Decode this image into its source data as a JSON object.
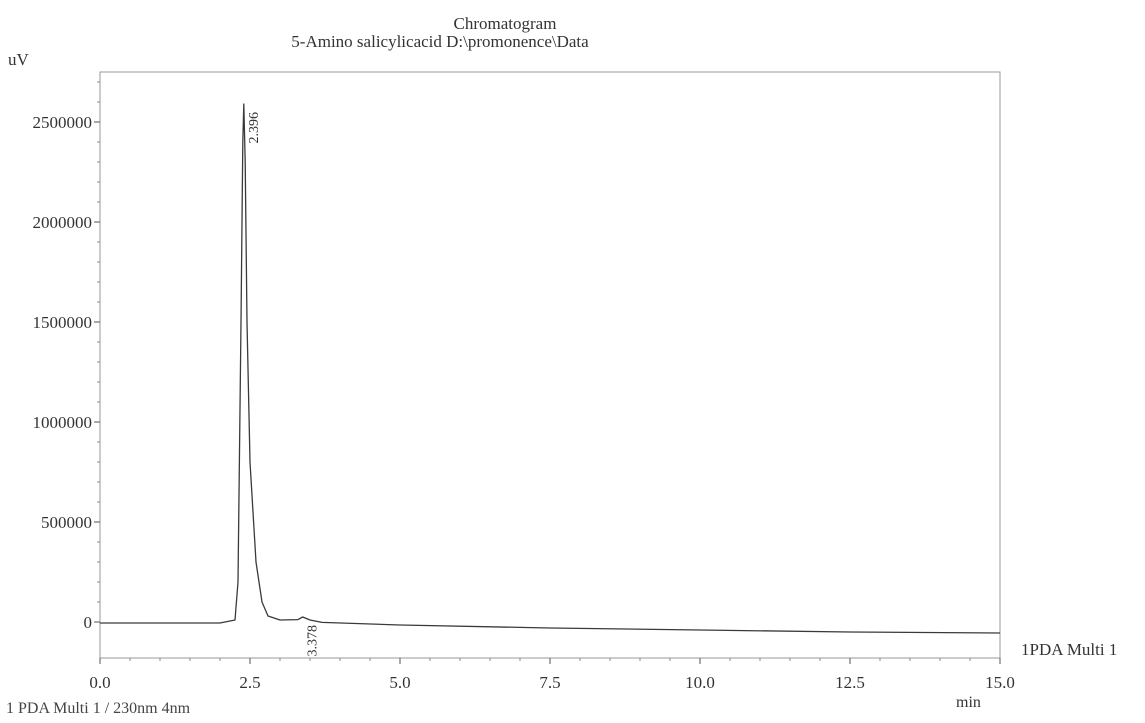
{
  "chart_data": {
    "type": "line",
    "title": "Chromatogram",
    "subtitle": "5-Amino salicylicacid D:\\promonence\\Data",
    "ylabel": "uV",
    "xlabel": "min",
    "xlim": [
      0.0,
      15.0
    ],
    "ylim": [
      -180000,
      2750000
    ],
    "x_ticks": [
      "0.0",
      "2.5",
      "5.0",
      "7.5",
      "10.0",
      "12.5",
      "15.0"
    ],
    "x_tick_values": [
      0.0,
      2.5,
      5.0,
      7.5,
      10.0,
      12.5,
      15.0
    ],
    "y_ticks": [
      "0",
      "500000",
      "1000000",
      "1500000",
      "2000000",
      "2500000"
    ],
    "y_tick_values": [
      0,
      500000,
      1000000,
      1500000,
      2000000,
      2500000
    ],
    "grid": false,
    "legend_right": "1PDA Multi 1",
    "legend_bottom": "1 PDA Multi 1 / 230nm 4nm",
    "series": [
      {
        "name": "PDA Multi 1 / 230nm 4nm",
        "x": [
          0.0,
          1.0,
          2.0,
          2.25,
          2.3,
          2.35,
          2.38,
          2.396,
          2.42,
          2.45,
          2.5,
          2.6,
          2.7,
          2.8,
          3.0,
          3.3,
          3.378,
          3.5,
          3.7,
          5.0,
          7.5,
          10.0,
          12.5,
          15.0
        ],
        "y": [
          -5000,
          -5000,
          -5000,
          10000,
          200000,
          1500000,
          2400000,
          2590000,
          2300000,
          1500000,
          800000,
          300000,
          100000,
          30000,
          10000,
          12000,
          25000,
          10000,
          -2000,
          -15000,
          -30000,
          -40000,
          -50000,
          -55000
        ]
      }
    ],
    "peak_labels": [
      {
        "x": 2.396,
        "y": 2590000,
        "label": "2.396"
      },
      {
        "x": 3.378,
        "y": 25000,
        "label": "3.378"
      }
    ]
  }
}
